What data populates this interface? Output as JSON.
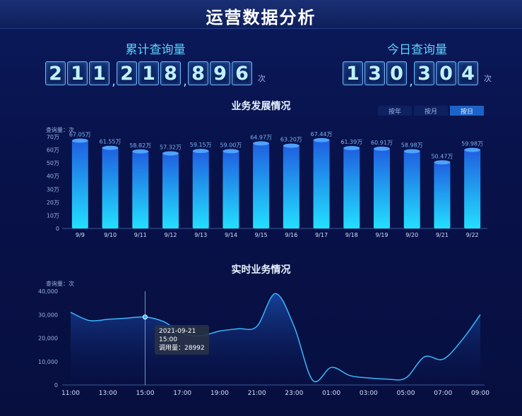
{
  "header": {
    "title": "运营数据分析"
  },
  "total_query": {
    "label": "累计查询量",
    "groups": [
      "211",
      "218",
      "896"
    ],
    "unit": "次"
  },
  "today_query": {
    "label": "今日查询量",
    "groups": [
      "130",
      "304"
    ],
    "unit": "次"
  },
  "business_chart": {
    "title": "业务发展情况",
    "toggles": [
      "按年",
      "按月",
      "按日"
    ],
    "active_toggle": 2,
    "y_unit": "查询量：次"
  },
  "realtime_chart": {
    "title": "实时业务情况",
    "y_unit": "查询量：次",
    "tooltip": {
      "date": "2021-09-21",
      "time": "15:00",
      "value_label": "调用量：28992"
    }
  },
  "colors": {
    "accent": "#5fd3ff",
    "bar_top": "#1f5fe0",
    "bar_bottom": "#23e0ff",
    "line": "#3ab8ff"
  },
  "chart_data": [
    {
      "type": "bar",
      "title": "业务发展情况",
      "ylabel": "查询量：次",
      "categories": [
        "9/9",
        "9/10",
        "9/11",
        "9/12",
        "9/13",
        "9/14",
        "9/15",
        "9/16",
        "9/17",
        "9/18",
        "9/19",
        "9/20",
        "9/21",
        "9/22"
      ],
      "values": [
        67.05,
        61.55,
        58.82,
        57.32,
        59.15,
        59.0,
        64.97,
        63.2,
        67.44,
        61.39,
        60.91,
        58.98,
        50.47,
        59.98
      ],
      "labels": [
        "67.05万",
        "61.55万",
        "58.82万",
        "57.32万",
        "59.15万",
        "59.00万",
        "64.97万",
        "63.20万",
        "67.44万",
        "61.39万",
        "60.91万",
        "58.98万",
        "50.47万",
        "59.98万"
      ],
      "yticks": [
        "0",
        "10万",
        "20万",
        "30万",
        "40万",
        "50万",
        "60万",
        "70万"
      ],
      "ylim": [
        0,
        70
      ]
    },
    {
      "type": "area",
      "title": "实时业务情况",
      "ylabel": "查询量：次",
      "x": [
        "11:00",
        "12:00",
        "13:00",
        "14:00",
        "15:00",
        "16:00",
        "17:00",
        "18:00",
        "19:00",
        "20:00",
        "21:00",
        "22:00",
        "23:00",
        "00:00",
        "01:00",
        "02:00",
        "03:00",
        "04:00",
        "05:00",
        "06:00",
        "07:00",
        "08:00",
        "09:00"
      ],
      "xticks": [
        "11:00",
        "13:00",
        "15:00",
        "17:00",
        "19:00",
        "21:00",
        "23:00",
        "01:00",
        "03:00",
        "05:00",
        "07:00",
        "09:00"
      ],
      "values": [
        31000,
        27500,
        28000,
        28500,
        28992,
        27000,
        22000,
        21000,
        23000,
        24000,
        25000,
        39000,
        25000,
        2000,
        7500,
        4000,
        3000,
        2500,
        3000,
        12000,
        11000,
        19000,
        30000
      ],
      "yticks": [
        "0",
        "10,000",
        "20,000",
        "30,000",
        "40,000"
      ],
      "ylim": [
        0,
        40000
      ]
    }
  ]
}
